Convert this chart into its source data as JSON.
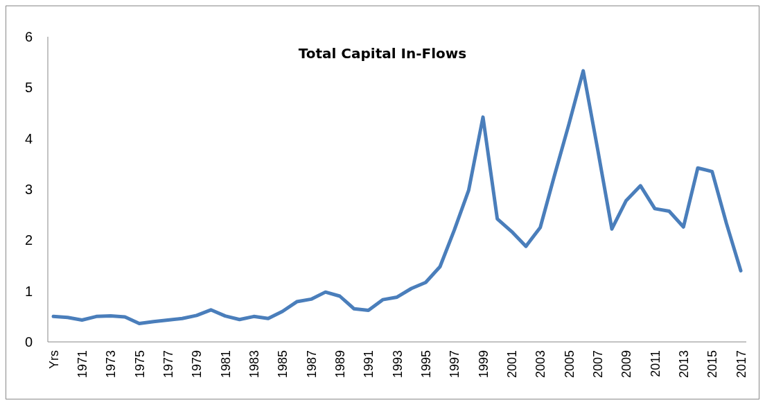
{
  "chart_data": {
    "type": "line",
    "title": "Total Capital In-Flows",
    "categories": [
      "Yrs",
      null,
      "1971",
      null,
      "1973",
      null,
      "1975",
      null,
      "1977",
      null,
      "1979",
      null,
      "1981",
      null,
      "1983",
      null,
      "1985",
      null,
      "1987",
      null,
      "1989",
      null,
      "1991",
      null,
      "1993",
      null,
      "1995",
      null,
      "1997",
      null,
      "1999",
      null,
      "2001",
      null,
      "2003",
      null,
      "2005",
      null,
      "2007",
      null,
      "2009",
      null,
      "2011",
      null,
      "2013",
      null,
      "2015",
      null,
      "2017"
    ],
    "series": [
      {
        "color": "#4a7ebb",
        "values": [
          0.5,
          0.48,
          0.43,
          0.5,
          0.51,
          0.49,
          0.36,
          0.4,
          0.43,
          0.46,
          0.52,
          0.63,
          0.51,
          0.44,
          0.5,
          0.46,
          0.6,
          0.79,
          0.84,
          0.98,
          0.9,
          0.65,
          0.62,
          0.83,
          0.88,
          1.05,
          1.17,
          1.48,
          2.2,
          2.98,
          4.42,
          2.42,
          2.17,
          1.88,
          2.25,
          3.28,
          4.28,
          5.33,
          3.8,
          2.22,
          2.78,
          3.07,
          2.62,
          2.57,
          2.26,
          3.42,
          3.35,
          2.33,
          1.4
        ]
      }
    ],
    "ylim": [
      0,
      6
    ],
    "yticks": [
      0,
      1,
      2,
      3,
      4,
      5,
      6
    ],
    "grid": false,
    "legend": false,
    "marker": "none",
    "line_style": "solid"
  }
}
